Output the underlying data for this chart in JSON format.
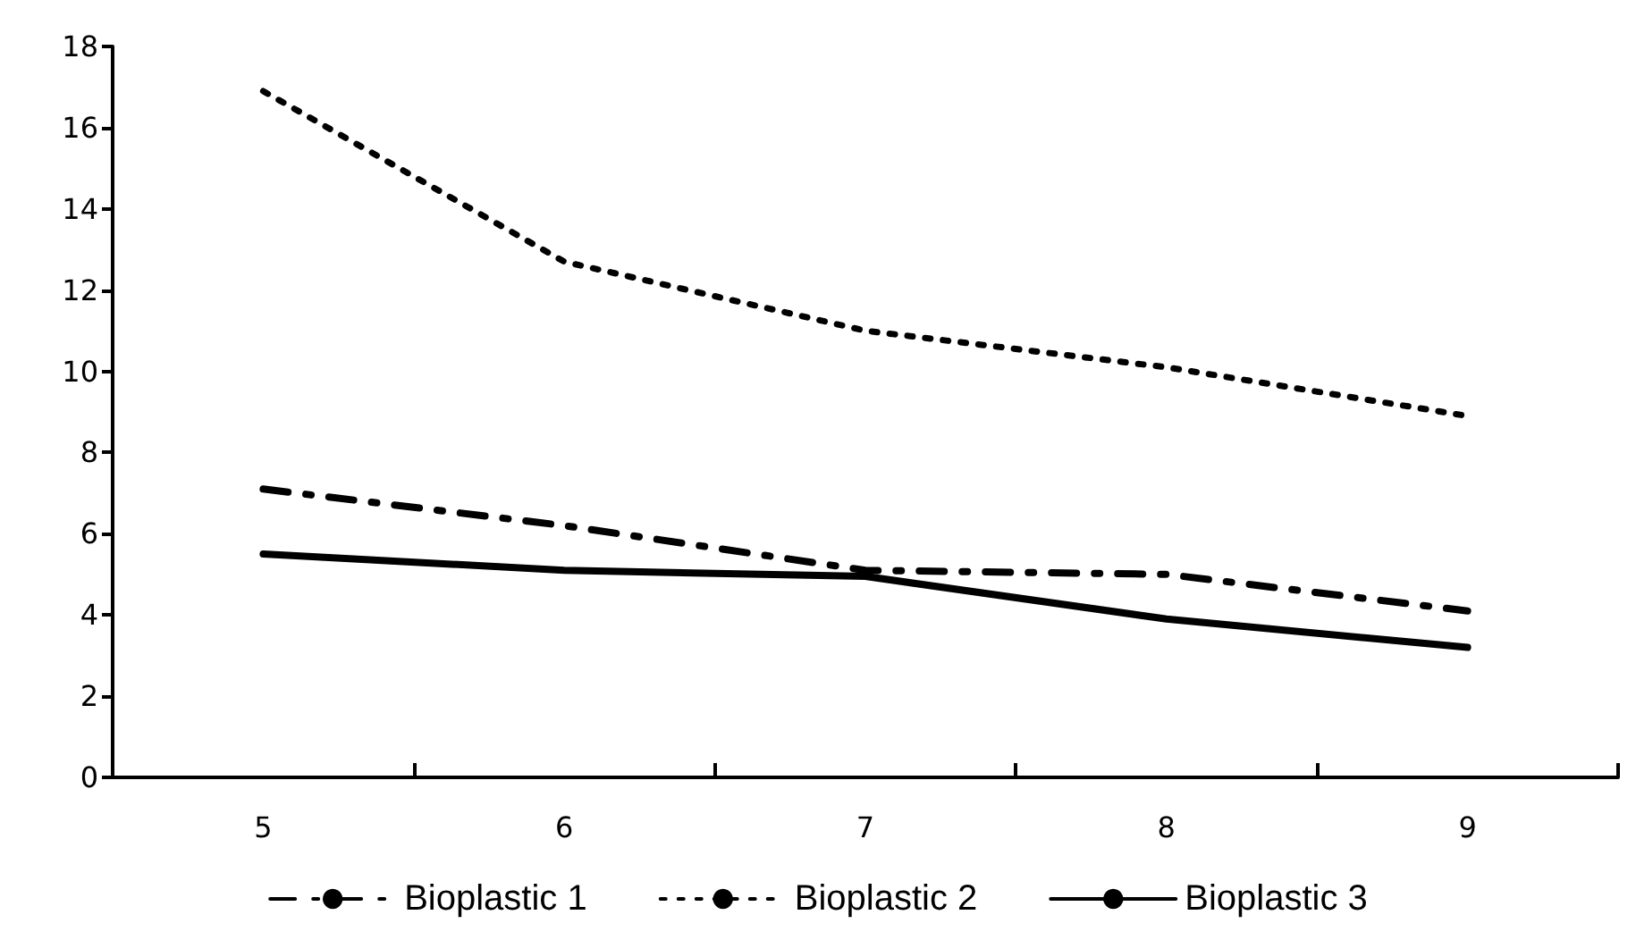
{
  "chart_data": {
    "type": "line",
    "categories": [
      "5",
      "6",
      "7",
      "8",
      "9"
    ],
    "series": [
      {
        "name": "Bioplastic 1",
        "color": "#000000",
        "line_style": "dashed",
        "values": [
          7.1,
          6.2,
          5.1,
          5.0,
          4.1
        ]
      },
      {
        "name": "Bioplastic 2",
        "color": "#000000",
        "line_style": "dotted",
        "values": [
          16.9,
          12.7,
          11.0,
          10.1,
          8.9
        ]
      },
      {
        "name": "Bioplastic 3",
        "color": "#000000",
        "line_style": "solid",
        "values": [
          5.5,
          5.1,
          4.95,
          3.9,
          3.2
        ]
      }
    ],
    "ylim": [
      0,
      18
    ],
    "yticks": [
      0,
      2,
      4,
      6,
      8,
      10,
      12,
      14,
      16,
      18
    ],
    "grid": false,
    "legend": "bottom",
    "marker": "none"
  }
}
